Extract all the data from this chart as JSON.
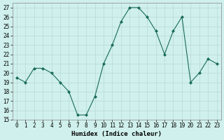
{
  "x": [
    0,
    1,
    2,
    3,
    4,
    5,
    6,
    7,
    8,
    9,
    10,
    11,
    12,
    13,
    14,
    15,
    16,
    17,
    18,
    19,
    20,
    21,
    22,
    23
  ],
  "y": [
    19.5,
    19.0,
    20.5,
    20.5,
    20.0,
    19.0,
    18.0,
    15.5,
    15.5,
    17.5,
    21.0,
    23.0,
    25.5,
    27.0,
    27.0,
    26.0,
    24.5,
    22.0,
    24.5,
    26.0,
    19.0,
    20.0,
    21.5,
    21.0
  ],
  "xlabel": "Humidex (Indice chaleur)",
  "line_color": "#1a6b5a",
  "marker": "D",
  "marker_size": 2,
  "bg_color": "#cff0ec",
  "grid_color": "#b8d8d4",
  "ylim": [
    15,
    27.5
  ],
  "xlim": [
    -0.5,
    23.5
  ],
  "yticks": [
    15,
    16,
    17,
    18,
    19,
    20,
    21,
    22,
    23,
    24,
    25,
    26,
    27
  ],
  "xticks": [
    0,
    1,
    2,
    3,
    4,
    5,
    6,
    7,
    8,
    9,
    10,
    11,
    12,
    13,
    14,
    15,
    16,
    17,
    18,
    19,
    20,
    21,
    22,
    23
  ],
  "tick_fontsize": 5.5,
  "xlabel_fontsize": 6.5
}
